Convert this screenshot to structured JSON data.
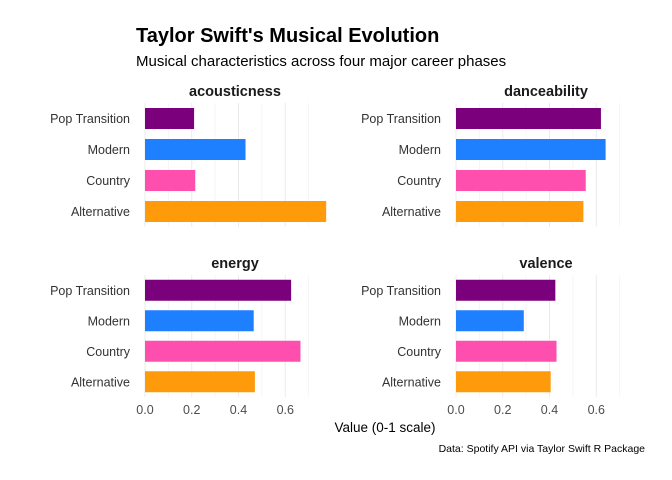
{
  "chart_data": {
    "type": "bar",
    "orientation": "horizontal",
    "title": "Taylor Swift's Musical Evolution",
    "subtitle": "Musical characteristics across four major career phases",
    "xlabel": "Value (0-1 scale)",
    "ylabel": "",
    "caption": "Data: Spotify API via Taylor Swift R Package",
    "xlim": [
      0,
      0.77
    ],
    "x_ticks": [
      "0.0",
      "0.2",
      "0.4",
      "0.6"
    ],
    "grid": true,
    "legend": "none",
    "categories": [
      "Pop Transition",
      "Modern",
      "Country",
      "Alternative"
    ],
    "colors": {
      "Pop Transition": "#7B007B",
      "Modern": "#1E7FFF",
      "Country": "#FF4FAE",
      "Alternative": "#FF9A0A"
    },
    "panels": [
      {
        "name": "acousticness",
        "values": [
          0.21,
          0.43,
          0.215,
          0.775
        ]
      },
      {
        "name": "danceability",
        "values": [
          0.62,
          0.64,
          0.555,
          0.545
        ]
      },
      {
        "name": "energy",
        "values": [
          0.625,
          0.465,
          0.665,
          0.47
        ]
      },
      {
        "name": "valence",
        "values": [
          0.425,
          0.29,
          0.43,
          0.405
        ]
      }
    ]
  }
}
